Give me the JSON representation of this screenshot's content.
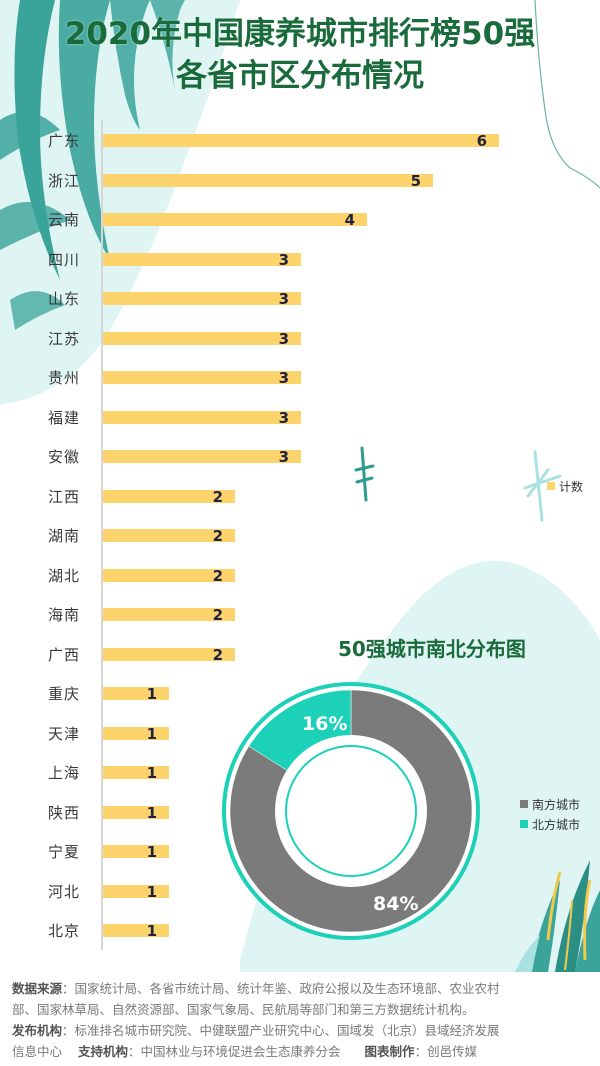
{
  "header": {
    "title_line1": "2020年中国康养城市排行榜50强",
    "title_line2": "各省市区分布情况"
  },
  "colors": {
    "title_green": "#1a6b3c",
    "bar_yellow": "#fdd36b",
    "south_grey": "#7b7b7b",
    "north_teal": "#1dd1b8",
    "bg_mint": "#dff5f4",
    "leaf_teal": "#3aa39a"
  },
  "bar_legend": {
    "label": "计数"
  },
  "pie": {
    "title": "50强城市南北分布图",
    "legend": [
      {
        "label": "南方城市",
        "color": "#7b7b7b"
      },
      {
        "label": "北方城市",
        "color": "#1dd1b8"
      }
    ],
    "labels": {
      "south": "84%",
      "north": "16%"
    }
  },
  "chart_data": [
    {
      "type": "bar",
      "orientation": "horizontal",
      "title": "2020年中国康养城市排行榜50强各省市区分布情况",
      "categories": [
        "广东",
        "浙江",
        "云南",
        "四川",
        "山东",
        "江苏",
        "贵州",
        "福建",
        "安徽",
        "江西",
        "湖南",
        "湖北",
        "海南",
        "广西",
        "重庆",
        "天津",
        "上海",
        "陕西",
        "宁夏",
        "河北",
        "北京"
      ],
      "values": [
        6,
        5,
        4,
        3,
        3,
        3,
        3,
        3,
        3,
        2,
        2,
        2,
        2,
        2,
        1,
        1,
        1,
        1,
        1,
        1,
        1
      ],
      "legend": [
        "计数"
      ],
      "xlabel": "",
      "ylabel": "",
      "xlim": [
        0,
        6
      ],
      "grid": false,
      "data_labels": true
    },
    {
      "type": "pie",
      "subtype": "donut",
      "title": "50强城市南北分布图",
      "categories": [
        "南方城市",
        "北方城市"
      ],
      "values": [
        84,
        16
      ],
      "unit": "%",
      "legend_position": "right"
    }
  ],
  "footer": {
    "source_label": "数据来源",
    "source_text_1": "：国家统计局、各省市统计局、统计年鉴、政府公报以及生态环境部、农业农村",
    "source_text_2": "部、国家林草局、自然资源部、国家气象局、民航局等部门和第三方数据统计机构。",
    "publisher_label": "发布机构",
    "publisher_text_1": "：标准排名城市研究院、中健联盟产业研究中心、国域发（北京）县域经济发展",
    "publisher_text_2": "信息中心",
    "support_label": "支持机构",
    "support_text": "：中国林业与环境促进会生态康养分会",
    "maker_label": "图表制作",
    "maker_text": "：创邑传媒"
  }
}
